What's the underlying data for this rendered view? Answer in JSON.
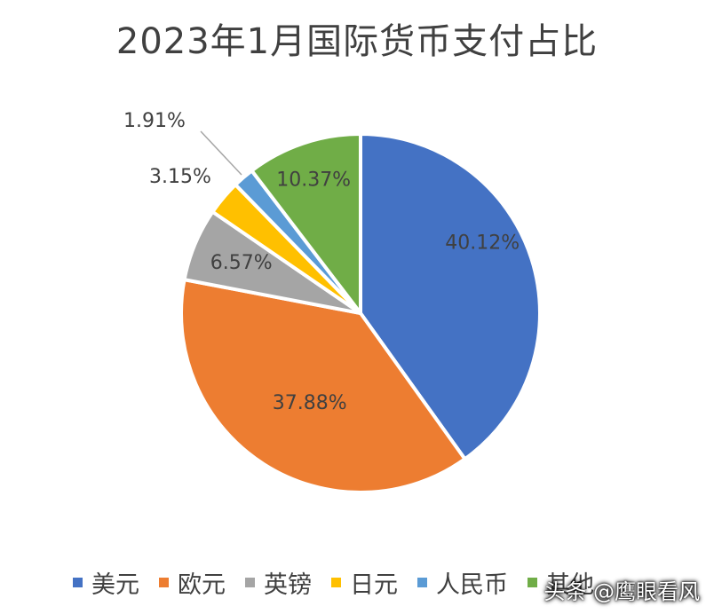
{
  "chart_data": {
    "type": "pie",
    "title": "2023年1月国际货币支付占比",
    "categories": [
      "美元",
      "欧元",
      "英镑",
      "日元",
      "人民币",
      "其他"
    ],
    "values": [
      40.12,
      37.88,
      6.57,
      3.15,
      1.91,
      10.37
    ],
    "labels": [
      "40.12%",
      "37.88%",
      "6.57%",
      "3.15%",
      "1.91%",
      "10.37%"
    ],
    "colors": [
      "#4472C4",
      "#ED7D31",
      "#A5A5A5",
      "#FFC000",
      "#5B9BD5",
      "#70AD47"
    ],
    "legend_position": "bottom"
  },
  "watermark": "头条 @鹰眼看风"
}
